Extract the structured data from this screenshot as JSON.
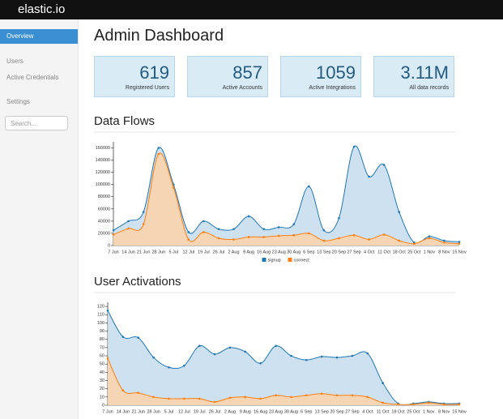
{
  "header": {
    "logo": "elastic.io"
  },
  "sidebar": {
    "items": [
      "Overview",
      "Users",
      "Active Credentials",
      "Settings"
    ],
    "search_placeholder": "Search..."
  },
  "main": {
    "title": "Admin Dashboard",
    "stats": [
      {
        "value": "619",
        "label": "Registered Users"
      },
      {
        "value": "857",
        "label": "Active Accounts"
      },
      {
        "value": "1059",
        "label": "Active Integrations"
      },
      {
        "value": "3.11M",
        "label": "All data records"
      }
    ]
  },
  "charts": [
    {
      "type": "area",
      "title": "Data Flows",
      "x": [
        "7 Jun",
        "14 Jun",
        "21 Jun",
        "28 Jun",
        "5 Jul",
        "12 Jul",
        "19 Jul",
        "26 Jul",
        "2 Aug",
        "9 Aug",
        "16 Aug",
        "23 Aug",
        "30 Aug",
        "6 Sep",
        "13 Sep",
        "20 Sep",
        "27 Sep",
        "4 Oct",
        "11 Oct",
        "18 Oct",
        "25 Oct",
        "1 Nov",
        "8 Nov",
        "15 Nov"
      ],
      "series": [
        {
          "name": "signup",
          "color": "#1f77b4",
          "values": [
            25000,
            40000,
            55000,
            160000,
            100000,
            22000,
            40000,
            27000,
            27000,
            48000,
            27000,
            30000,
            35000,
            97000,
            25000,
            45000,
            162000,
            113000,
            132000,
            55000,
            5000,
            15000,
            8000,
            6000
          ]
        },
        {
          "name": "connect",
          "color": "#ff7f0e",
          "values": [
            18000,
            28000,
            35000,
            150000,
            95000,
            10000,
            22000,
            12000,
            10000,
            14000,
            14000,
            16000,
            17000,
            20000,
            8000,
            12000,
            17000,
            10000,
            18000,
            8000,
            3000,
            12000,
            5000,
            3000
          ]
        }
      ],
      "ylim": [
        0,
        170000
      ],
      "yticks": [
        0,
        20000,
        40000,
        60000,
        80000,
        100000,
        120000,
        140000,
        160000
      ],
      "legend": "bottom"
    },
    {
      "type": "area",
      "title": "User Activations",
      "x": [
        "7 Jun",
        "14 Jun",
        "21 Jun",
        "28 Jun",
        "5 Jul",
        "12 Jul",
        "19 Jul",
        "26 Jul",
        "2 Aug",
        "9 Aug",
        "16 Aug",
        "23 Aug",
        "30 Aug",
        "6 Sep",
        "13 Sep",
        "20 Sep",
        "27 Sep",
        "4 Oct",
        "11 Oct",
        "18 Oct",
        "25 Oct",
        "1 Nov",
        "8 Nov",
        "15 Nov"
      ],
      "series": [
        {
          "color": "#1f77b4",
          "values": [
            115,
            83,
            82,
            58,
            46,
            48,
            72,
            62,
            70,
            65,
            51,
            72,
            60,
            55,
            59,
            58,
            60,
            63,
            27,
            2,
            2,
            4,
            2,
            2
          ]
        },
        {
          "color": "#ff7f0e",
          "values": [
            57,
            18,
            15,
            10,
            8,
            8,
            8,
            4,
            9,
            10,
            8,
            12,
            10,
            12,
            14,
            12,
            12,
            10,
            3,
            1,
            1,
            3,
            1,
            1
          ]
        }
      ],
      "ylim": [
        0,
        125
      ],
      "yticks": [
        0,
        10,
        20,
        30,
        40,
        50,
        60,
        70,
        80,
        90,
        100,
        110,
        120
      ]
    }
  ]
}
